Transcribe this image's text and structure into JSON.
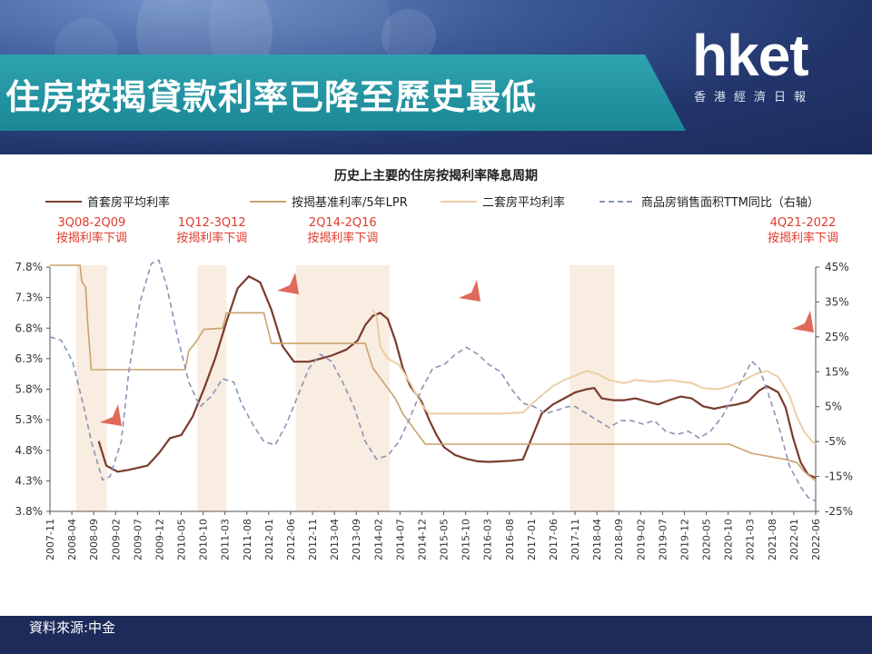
{
  "header": {
    "title": "住房按揭貸款利率已降至歷史最低",
    "logo": "hket",
    "logo_sub": "香港經濟日報"
  },
  "footer": {
    "source": "資料來源:中金"
  },
  "colors": {
    "first_home": "#7a3b2e",
    "lpr": "#c9a36b",
    "second_home": "#ebcfa6",
    "sales_yoy": "#8b93b8",
    "shade": "#f9ece0",
    "annotation_red": "#e03a2c"
  },
  "chart_data": {
    "type": "line",
    "title": "历史上主要的住房按揭利率降息周期",
    "x_ticks": [
      "2007-11",
      "2008-04",
      "2008-09",
      "2009-02",
      "2009-07",
      "2009-12",
      "2010-05",
      "2010-10",
      "2011-03",
      "2011-08",
      "2012-01",
      "2012-06",
      "2012-11",
      "2013-04",
      "2013-09",
      "2014-02",
      "2014-07",
      "2014-12",
      "2015-05",
      "2015-10",
      "2016-03",
      "2016-08",
      "2017-01",
      "2017-06",
      "2017-11",
      "2018-04",
      "2018-09",
      "2019-02",
      "2019-07",
      "2019-12",
      "2020-05",
      "2020-10",
      "2021-03",
      "2021-08",
      "2022-01",
      "2022-06"
    ],
    "left_axis": {
      "ticks": [
        "3.8%",
        "4.3%",
        "4.8%",
        "5.3%",
        "5.8%",
        "6.3%",
        "6.8%",
        "7.3%",
        "7.8%"
      ],
      "ylim": [
        3.8,
        7.8
      ]
    },
    "right_axis": {
      "ticks": [
        "-25%",
        "-15%",
        "-5%",
        "5%",
        "15%",
        "25%",
        "35%",
        "45%"
      ],
      "ylim": [
        -25,
        45
      ]
    },
    "legend": {
      "placement": "top"
    },
    "shaded_periods": [
      {
        "label": "3Q08-2Q09",
        "sublabel": "按揭利率下调",
        "start": 2008.6,
        "end": 2009.42
      },
      {
        "label": "1Q12-3Q12",
        "sublabel": "按揭利率下调",
        "start": 2011.83,
        "end": 2012.6
      },
      {
        "label": "2Q14-2Q16",
        "sublabel": "按揭利率下调",
        "start": 2014.45,
        "end": 2016.95
      },
      {
        "label": "4Q21-2022",
        "sublabel": "按揭利率下调",
        "start": 2021.75,
        "end": 2022.95
      }
    ],
    "series": [
      {
        "name": "首套房平均利率",
        "axis": "left",
        "points": [
          [
            2009.2,
            4.95
          ],
          [
            2009.4,
            4.55
          ],
          [
            2009.7,
            4.45
          ],
          [
            2010.0,
            4.48
          ],
          [
            2010.5,
            4.55
          ],
          [
            2010.8,
            4.75
          ],
          [
            2011.1,
            5.0
          ],
          [
            2011.4,
            5.05
          ],
          [
            2011.7,
            5.35
          ],
          [
            2012.0,
            5.8
          ],
          [
            2012.3,
            6.3
          ],
          [
            2012.6,
            6.9
          ],
          [
            2012.9,
            7.45
          ],
          [
            2013.2,
            7.65
          ],
          [
            2013.5,
            7.55
          ],
          [
            2013.8,
            7.1
          ],
          [
            2014.1,
            6.5
          ],
          [
            2014.4,
            6.25
          ],
          [
            2014.8,
            6.25
          ],
          [
            2015.1,
            6.3
          ],
          [
            2015.4,
            6.35
          ],
          [
            2015.8,
            6.45
          ],
          [
            2016.1,
            6.6
          ],
          [
            2016.3,
            6.85
          ],
          [
            2016.5,
            7.0
          ],
          [
            2016.7,
            7.05
          ],
          [
            2016.9,
            6.95
          ],
          [
            2017.1,
            6.6
          ],
          [
            2017.3,
            6.15
          ],
          [
            2017.5,
            5.85
          ],
          [
            2017.8,
            5.6
          ],
          [
            2018.0,
            5.3
          ],
          [
            2018.2,
            5.05
          ],
          [
            2018.4,
            4.85
          ],
          [
            2018.7,
            4.72
          ],
          [
            2019.0,
            4.66
          ],
          [
            2019.3,
            4.62
          ],
          [
            2019.6,
            4.61
          ],
          [
            2019.9,
            4.62
          ],
          [
            2020.2,
            4.63
          ],
          [
            2020.5,
            4.65
          ],
          [
            2020.8,
            5.1
          ],
          [
            2021.0,
            5.4
          ],
          [
            2021.3,
            5.55
          ],
          [
            2021.6,
            5.65
          ],
          [
            2021.9,
            5.75
          ],
          [
            2022.2,
            5.8
          ],
          [
            2022.4,
            5.82
          ],
          [
            2022.6,
            5.65
          ],
          [
            2022.9,
            5.62
          ],
          [
            2023.2,
            5.62
          ],
          [
            2023.5,
            5.65
          ],
          [
            2023.8,
            5.6
          ],
          [
            2024.1,
            5.55
          ],
          [
            2024.4,
            5.62
          ],
          [
            2024.7,
            5.68
          ],
          [
            2025.0,
            5.65
          ],
          [
            2025.3,
            5.52
          ],
          [
            2025.6,
            5.48
          ],
          [
            2025.9,
            5.52
          ],
          [
            2026.2,
            5.55
          ],
          [
            2026.5,
            5.6
          ],
          [
            2026.8,
            5.78
          ],
          [
            2027.0,
            5.85
          ],
          [
            2027.3,
            5.75
          ],
          [
            2027.5,
            5.5
          ],
          [
            2027.7,
            5.0
          ],
          [
            2027.9,
            4.6
          ],
          [
            2028.1,
            4.4
          ],
          [
            2028.3,
            4.35
          ]
        ]
      },
      {
        "name": "按揭基准利率/5年LPR",
        "axis": "left",
        "points": [
          [
            2007.9,
            7.83
          ],
          [
            2008.7,
            7.83
          ],
          [
            2008.75,
            7.56
          ],
          [
            2008.85,
            7.47
          ],
          [
            2008.9,
            6.93
          ],
          [
            2009.0,
            6.12
          ],
          [
            2009.6,
            6.12
          ],
          [
            2011.5,
            6.12
          ],
          [
            2011.6,
            6.43
          ],
          [
            2011.8,
            6.58
          ],
          [
            2012.0,
            6.78
          ],
          [
            2012.5,
            6.8
          ],
          [
            2012.6,
            7.05
          ],
          [
            2013.6,
            7.05
          ],
          [
            2013.7,
            6.8
          ],
          [
            2013.8,
            6.55
          ],
          [
            2016.3,
            6.55
          ],
          [
            2016.5,
            6.15
          ],
          [
            2016.8,
            5.9
          ],
          [
            2017.1,
            5.65
          ],
          [
            2017.3,
            5.4
          ],
          [
            2017.6,
            5.15
          ],
          [
            2017.9,
            4.9
          ],
          [
            2026.0,
            4.9
          ],
          [
            2026.2,
            4.85
          ],
          [
            2026.4,
            4.8
          ],
          [
            2026.6,
            4.75
          ],
          [
            2027.5,
            4.65
          ],
          [
            2027.8,
            4.6
          ],
          [
            2028.0,
            4.45
          ],
          [
            2028.3,
            4.3
          ]
        ]
      },
      {
        "name": "二套房平均利率",
        "axis": "left",
        "points": [
          [
            2016.5,
            7.1
          ],
          [
            2016.6,
            7.0
          ],
          [
            2016.7,
            6.5
          ],
          [
            2016.9,
            6.3
          ],
          [
            2017.2,
            6.2
          ],
          [
            2017.5,
            5.9
          ],
          [
            2017.8,
            5.55
          ],
          [
            2018.0,
            5.4
          ],
          [
            2018.2,
            5.4
          ],
          [
            2019.9,
            5.4
          ],
          [
            2020.5,
            5.42
          ],
          [
            2020.9,
            5.65
          ],
          [
            2021.3,
            5.85
          ],
          [
            2021.6,
            5.95
          ],
          [
            2022.0,
            6.05
          ],
          [
            2022.2,
            6.1
          ],
          [
            2022.5,
            6.05
          ],
          [
            2022.8,
            5.95
          ],
          [
            2023.2,
            5.9
          ],
          [
            2023.5,
            5.95
          ],
          [
            2024.0,
            5.92
          ],
          [
            2024.4,
            5.95
          ],
          [
            2025.0,
            5.9
          ],
          [
            2025.3,
            5.82
          ],
          [
            2025.7,
            5.8
          ],
          [
            2026.0,
            5.85
          ],
          [
            2026.4,
            5.95
          ],
          [
            2026.7,
            6.05
          ],
          [
            2027.0,
            6.1
          ],
          [
            2027.3,
            6.0
          ],
          [
            2027.6,
            5.7
          ],
          [
            2027.8,
            5.35
          ],
          [
            2028.0,
            5.1
          ],
          [
            2028.2,
            4.95
          ],
          [
            2028.3,
            4.9
          ]
        ]
      },
      {
        "name": "商品房销售面积TTM同比（右轴）",
        "axis": "right",
        "dashed": true,
        "points": [
          [
            2007.9,
            25
          ],
          [
            2008.2,
            24
          ],
          [
            2008.5,
            18
          ],
          [
            2008.8,
            5
          ],
          [
            2009.0,
            -5
          ],
          [
            2009.3,
            -16
          ],
          [
            2009.5,
            -15
          ],
          [
            2009.8,
            -5
          ],
          [
            2010.0,
            15
          ],
          [
            2010.3,
            35
          ],
          [
            2010.6,
            46
          ],
          [
            2010.8,
            47
          ],
          [
            2011.0,
            40
          ],
          [
            2011.3,
            25
          ],
          [
            2011.6,
            12
          ],
          [
            2011.9,
            5
          ],
          [
            2012.2,
            8
          ],
          [
            2012.5,
            13
          ],
          [
            2012.8,
            12
          ],
          [
            2013.0,
            6
          ],
          [
            2013.3,
            0
          ],
          [
            2013.6,
            -5
          ],
          [
            2013.9,
            -6
          ],
          [
            2014.2,
            0
          ],
          [
            2014.5,
            8
          ],
          [
            2014.8,
            16
          ],
          [
            2015.1,
            20
          ],
          [
            2015.4,
            18
          ],
          [
            2015.7,
            12
          ],
          [
            2016.0,
            5
          ],
          [
            2016.3,
            -5
          ],
          [
            2016.6,
            -10
          ],
          [
            2016.9,
            -9
          ],
          [
            2017.2,
            -5
          ],
          [
            2017.5,
            2
          ],
          [
            2017.8,
            10
          ],
          [
            2018.1,
            16
          ],
          [
            2018.4,
            17
          ],
          [
            2018.7,
            20
          ],
          [
            2019.0,
            22
          ],
          [
            2019.3,
            20
          ],
          [
            2019.6,
            17
          ],
          [
            2019.9,
            15
          ],
          [
            2020.2,
            10
          ],
          [
            2020.5,
            6
          ],
          [
            2020.8,
            5
          ],
          [
            2021.1,
            3
          ],
          [
            2021.4,
            4
          ],
          [
            2021.7,
            5
          ],
          [
            2021.9,
            5
          ],
          [
            2022.2,
            3
          ],
          [
            2022.5,
            1
          ],
          [
            2022.8,
            -1
          ],
          [
            2023.1,
            1
          ],
          [
            2023.4,
            1
          ],
          [
            2023.7,
            0
          ],
          [
            2024.0,
            1
          ],
          [
            2024.3,
            -2
          ],
          [
            2024.6,
            -3
          ],
          [
            2024.9,
            -2
          ],
          [
            2025.2,
            -4
          ],
          [
            2025.5,
            -2
          ],
          [
            2025.8,
            2
          ],
          [
            2026.1,
            8
          ],
          [
            2026.4,
            14
          ],
          [
            2026.6,
            18
          ],
          [
            2026.8,
            16
          ],
          [
            2027.0,
            10
          ],
          [
            2027.3,
            0
          ],
          [
            2027.6,
            -12
          ],
          [
            2027.9,
            -18
          ],
          [
            2028.1,
            -21
          ],
          [
            2028.3,
            -22
          ]
        ]
      }
    ]
  }
}
